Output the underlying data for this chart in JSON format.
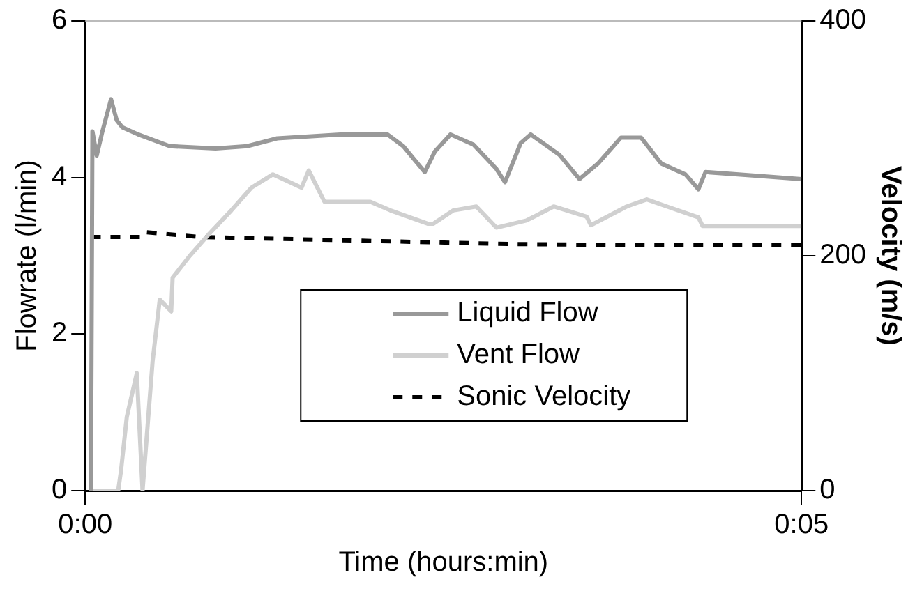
{
  "chart_data": {
    "type": "line",
    "xlabel": "Time (hours:min)",
    "ylabel": "Flowrate (l/min)",
    "y2label": "Velocity (m/s)",
    "xlim": [
      0,
      5
    ],
    "xticks": [
      {
        "value": 0,
        "label": "0:00"
      },
      {
        "value": 5,
        "label": "0:05"
      }
    ],
    "ylim": [
      0,
      6
    ],
    "yticks": [
      0,
      2,
      4,
      6
    ],
    "y2lim": [
      0,
      400
    ],
    "y2ticks": [
      0,
      200,
      400
    ],
    "grid": false,
    "legend": "bottom right",
    "marker": "none",
    "series": [
      {
        "name": "Liquid Flow",
        "color": "#999999",
        "line_style": "solid",
        "x": [
          0.04,
          0.05,
          0.08,
          0.12,
          0.18,
          0.22,
          0.26,
          0.37,
          0.59,
          0.91,
          1.13,
          1.34,
          1.78,
          2.11,
          2.22,
          2.37,
          2.44,
          2.55,
          2.71,
          2.87,
          2.93,
          3.04,
          3.11,
          3.31,
          3.45,
          3.58,
          3.74,
          3.88,
          4.02,
          4.19,
          4.28,
          4.33,
          5.0
        ],
        "values": [
          0,
          4.59,
          4.28,
          4.59,
          5.0,
          4.73,
          4.64,
          4.55,
          4.4,
          4.37,
          4.4,
          4.5,
          4.55,
          4.55,
          4.4,
          4.07,
          4.33,
          4.55,
          4.42,
          4.11,
          3.94,
          4.44,
          4.55,
          4.29,
          3.98,
          4.18,
          4.51,
          4.51,
          4.18,
          4.04,
          3.85,
          4.07,
          3.98
        ]
      },
      {
        "name": "Vent Flow",
        "color": "#d0d0d0",
        "line_style": "solid",
        "x": [
          0.04,
          0.13,
          0.23,
          0.25,
          0.29,
          0.36,
          0.4,
          0.47,
          0.52,
          0.6,
          0.61,
          0.73,
          0.86,
          1.02,
          1.16,
          1.31,
          1.51,
          1.56,
          1.67,
          1.99,
          2.13,
          2.39,
          2.43,
          2.57,
          2.73,
          2.87,
          3.08,
          3.27,
          3.5,
          3.53,
          3.78,
          3.92,
          4.06,
          4.28,
          4.31,
          5.0
        ],
        "values": [
          0,
          0,
          0,
          0.26,
          0.94,
          1.5,
          0,
          1.65,
          2.44,
          2.29,
          2.72,
          3.0,
          3.27,
          3.58,
          3.87,
          4.04,
          3.87,
          4.09,
          3.69,
          3.69,
          3.58,
          3.41,
          3.41,
          3.58,
          3.63,
          3.36,
          3.45,
          3.63,
          3.5,
          3.39,
          3.63,
          3.72,
          3.63,
          3.49,
          3.38,
          3.38
        ]
      },
      {
        "name": "Sonic Velocity",
        "color": "#000000",
        "line_style": "dashed",
        "axis": "y2",
        "x": [
          0.04,
          0.41,
          0.43,
          0.8,
          1.88,
          2.96,
          4.04,
          5.0
        ],
        "values": [
          216,
          216,
          220,
          216,
          213,
          210,
          209,
          209
        ]
      }
    ]
  }
}
